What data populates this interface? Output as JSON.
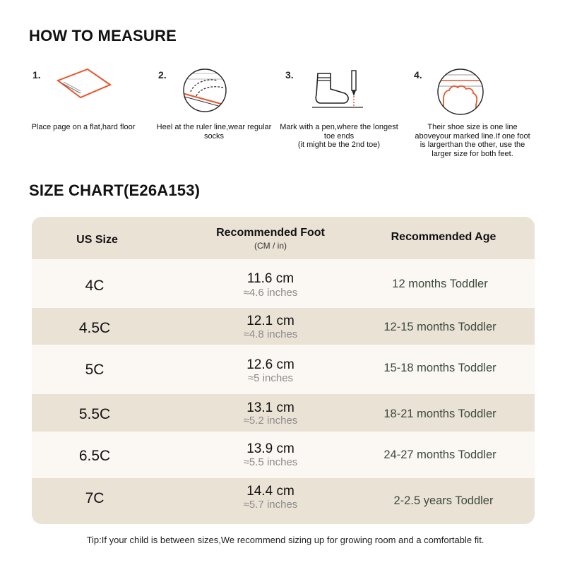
{
  "measure": {
    "title": "HOW TO MEASURE",
    "steps": [
      {
        "num": "1.",
        "icon": "paper-on-floor-icon",
        "text": "Place page on a flat,hard floor"
      },
      {
        "num": "2.",
        "icon": "heel-ruler-icon",
        "text": "Heel at the ruler line,wear regular socks"
      },
      {
        "num": "3.",
        "icon": "sock-pen-icon",
        "text": "Mark with a pen,where the longest toe ends\n(it might be the 2nd toe)"
      },
      {
        "num": "4.",
        "icon": "toe-lines-icon",
        "text": "Their shoe size is one line aboveyour marked line.If one foot is largerthan the other, use the larger size for both feet."
      }
    ]
  },
  "chart": {
    "title": "SIZE CHART(E26A153)",
    "headers": {
      "size": "US Size",
      "foot": "Recommended Foot",
      "foot_sub": "(CM / in)",
      "age": "Recommended Age"
    },
    "rows": [
      {
        "size": "4C",
        "cm": "11.6 cm",
        "inches": "≈4.6 inches",
        "age": "12 months Toddler"
      },
      {
        "size": "4.5C",
        "cm": "12.1 cm",
        "inches": "≈4.8 inches",
        "age": "12-15 months Toddler"
      },
      {
        "size": "5C",
        "cm": "12.6 cm",
        "inches": "≈5 inches",
        "age": "15-18 months Toddler"
      },
      {
        "size": "5.5C",
        "cm": "13.1 cm",
        "inches": "≈5.2 inches",
        "age": "18-21 months Toddler"
      },
      {
        "size": "6.5C",
        "cm": "13.9 cm",
        "inches": "≈5.5 inches",
        "age": "24-27 months Toddler"
      },
      {
        "size": "7C",
        "cm": "14.4 cm",
        "inches": "≈5.7 inches",
        "age": "2-2.5 years Toddler"
      }
    ]
  },
  "tip": "Tip:If your child is between sizes,We recommend sizing up for growing room and a comfortable fit.",
  "colors": {
    "accent": "#e8542a",
    "row_dark": "#ebe2d6",
    "row_light": "#fbf7f2",
    "age_text": "#3b4a3c"
  }
}
